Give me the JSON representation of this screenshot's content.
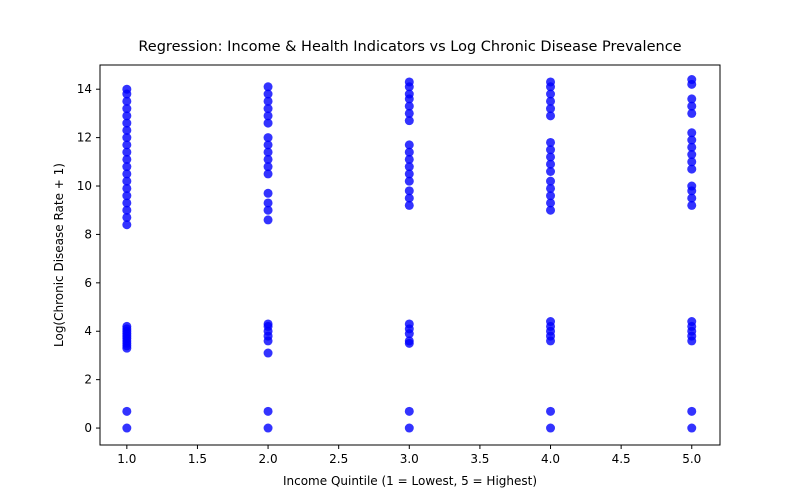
{
  "chart_data": {
    "type": "scatter",
    "title": "Regression: Income & Health Indicators vs Log Chronic Disease Prevalence",
    "xlabel": "Income Quintile (1 = Lowest, 5 = Highest)",
    "ylabel": "Log(Chronic Disease Rate + 1)",
    "color": "#0000ff",
    "x": [
      1,
      1,
      1,
      1,
      1,
      1,
      1,
      1,
      1,
      1,
      1,
      1,
      1,
      1,
      1,
      1,
      1,
      1,
      1,
      1,
      1,
      1,
      1,
      1,
      1,
      1,
      1,
      1,
      1,
      1,
      1,
      1,
      2,
      2,
      2,
      2,
      2,
      2,
      2,
      2,
      2,
      2,
      2,
      2,
      2,
      2,
      2,
      2,
      2,
      2,
      2,
      2,
      2,
      2,
      2,
      2,
      3,
      3,
      3,
      3,
      3,
      3,
      3,
      3,
      3,
      3,
      3,
      3,
      3,
      3,
      3,
      3,
      3,
      3,
      3,
      3,
      3,
      3,
      3,
      4,
      4,
      4,
      4,
      4,
      4,
      4,
      4,
      4,
      4,
      4,
      4,
      4,
      4,
      4,
      4,
      4,
      4,
      4,
      4,
      4,
      4,
      4,
      5,
      5,
      5,
      5,
      5,
      5,
      5,
      5,
      5,
      5,
      5,
      5,
      5,
      5,
      5,
      5,
      5,
      5,
      5,
      5,
      5,
      5
    ],
    "values": [
      0,
      0.69,
      3.3,
      3.4,
      3.5,
      3.6,
      3.7,
      3.8,
      3.9,
      4.0,
      4.1,
      4.2,
      8.4,
      8.7,
      9.0,
      9.3,
      9.6,
      9.9,
      10.2,
      10.5,
      10.8,
      11.1,
      11.4,
      11.7,
      12.0,
      12.3,
      12.6,
      12.9,
      13.2,
      13.5,
      13.8,
      14.0,
      0,
      0.69,
      3.1,
      3.6,
      3.8,
      4.0,
      4.2,
      4.3,
      8.6,
      9.0,
      9.3,
      9.7,
      10.5,
      10.8,
      11.1,
      11.4,
      11.7,
      12.0,
      12.6,
      12.9,
      13.2,
      13.5,
      13.8,
      14.1,
      0,
      0.69,
      3.5,
      3.6,
      3.9,
      4.1,
      4.3,
      9.2,
      9.5,
      9.8,
      10.2,
      10.5,
      10.8,
      11.1,
      11.4,
      11.7,
      12.7,
      13.0,
      13.3,
      13.6,
      13.8,
      14.1,
      14.3,
      0,
      0.69,
      3.6,
      3.8,
      4.0,
      4.2,
      4.4,
      9.0,
      9.3,
      9.6,
      9.9,
      10.2,
      10.6,
      10.9,
      11.2,
      11.5,
      11.8,
      12.9,
      13.2,
      13.5,
      13.8,
      14.1,
      14.3,
      0,
      0.69,
      3.6,
      3.8,
      4.0,
      4.2,
      4.4,
      9.2,
      9.5,
      9.8,
      10.0,
      10.7,
      11.0,
      11.3,
      11.6,
      11.9,
      12.2,
      13.0,
      13.3,
      13.6,
      14.2,
      14.4
    ],
    "xlim": [
      0.81,
      5.2
    ],
    "ylim": [
      -0.7,
      15.0
    ],
    "xticks": [
      {
        "value": 1.0,
        "label": "1.0"
      },
      {
        "value": 1.5,
        "label": "1.5"
      },
      {
        "value": 2.0,
        "label": "2.0"
      },
      {
        "value": 2.5,
        "label": "2.5"
      },
      {
        "value": 3.0,
        "label": "3.0"
      },
      {
        "value": 3.5,
        "label": "3.5"
      },
      {
        "value": 4.0,
        "label": "4.0"
      },
      {
        "value": 4.5,
        "label": "4.5"
      },
      {
        "value": 5.0,
        "label": "5.0"
      }
    ],
    "yticks": [
      0,
      2,
      4,
      6,
      8,
      10,
      12,
      14
    ]
  }
}
